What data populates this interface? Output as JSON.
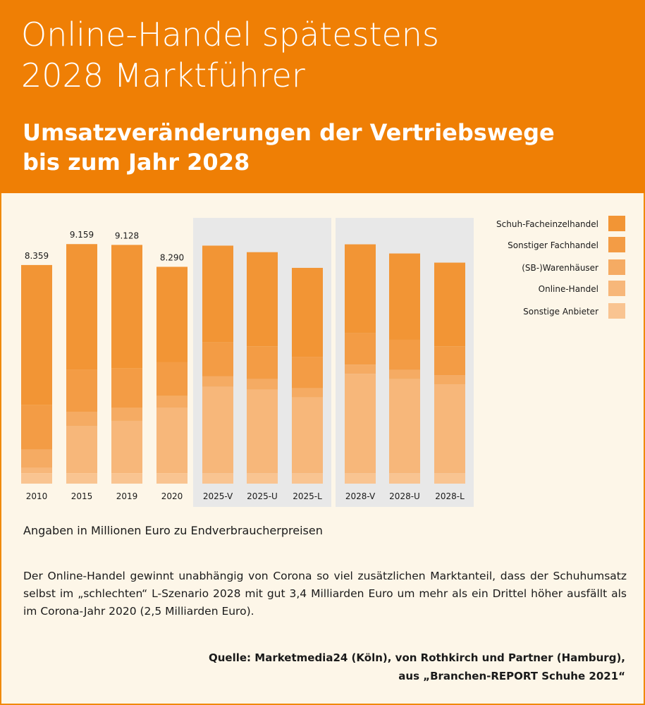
{
  "header": {
    "title": "Online-Handel spätestens\n2028 Marktführer",
    "subtitle": "Umsatzveränderungen der Vertriebswege\nbis zum Jahr 2028"
  },
  "colors": {
    "header_bg": "#ef7f05",
    "page_bg": "#fdf6e8",
    "scenario_bg": "#e8e8e8"
  },
  "chart_data": {
    "type": "bar",
    "stacked": true,
    "categories": [
      "2010",
      "2015",
      "2019",
      "2020",
      "2025-V",
      "2025-U",
      "2025-L",
      "2028-V",
      "2028-U",
      "2028-L"
    ],
    "value_labels": [
      "8.359",
      "9.159",
      "9.128",
      "8.290",
      "",
      "",
      "",
      "",
      "",
      ""
    ],
    "series": [
      {
        "name": "Sonstige Anbieter",
        "color": "#f9c491",
        "values": [
          400,
          400,
          400,
          400,
          400,
          400,
          400,
          400,
          400,
          400
        ]
      },
      {
        "name": "Online-Handel",
        "color": "#f7b77a",
        "values": [
          200,
          1800,
          2000,
          2500,
          3300,
          3200,
          2900,
          3800,
          3600,
          3400
        ]
      },
      {
        "name": "(SB-)Warenhäuser",
        "color": "#f5ab63",
        "values": [
          700,
          550,
          500,
          450,
          400,
          400,
          350,
          350,
          350,
          350
        ]
      },
      {
        "name": "Sonstiger Fachhandel",
        "color": "#f39c45",
        "values": [
          1700,
          1600,
          1500,
          1300,
          1300,
          1250,
          1200,
          1200,
          1150,
          1100
        ]
      },
      {
        "name": "Schuh-Facheinzelhandel",
        "color": "#f29535",
        "values": [
          5359,
          4809,
          4728,
          3640,
          3700,
          3600,
          3400,
          3400,
          3300,
          3200
        ]
      }
    ],
    "legend": [
      "Schuh-Facheinzelhandel",
      "Sonstiger Fachhandel",
      "(SB-)Warenhäuser",
      "Online-Handel",
      "Sonstige Anbieter"
    ],
    "legend_position": "top-right",
    "scenario_groups": [
      [
        "2025-V",
        "2025-U",
        "2025-L"
      ],
      [
        "2028-V",
        "2028-U",
        "2028-L"
      ]
    ],
    "ylim": [
      0,
      9300
    ],
    "grid": false
  },
  "note": "Angaben in Millionen Euro zu Endverbraucherpreisen",
  "description": "Der Online-Handel gewinnt unabhängig von Corona so viel zusätzlichen Marktanteil, dass der Schuhumsatz selbst im „schlechten“ L-Szenario 2028 mit gut 3,4 Milliarden Euro um mehr als ein Drittel höher ausfällt als im Corona-Jahr 2020 (2,5 Milliarden Euro).",
  "source": "Quelle: Marketmedia24 (Köln), von Rothkirch und Partner (Hamburg),\naus „Branchen-REPORT Schuhe 2021“"
}
